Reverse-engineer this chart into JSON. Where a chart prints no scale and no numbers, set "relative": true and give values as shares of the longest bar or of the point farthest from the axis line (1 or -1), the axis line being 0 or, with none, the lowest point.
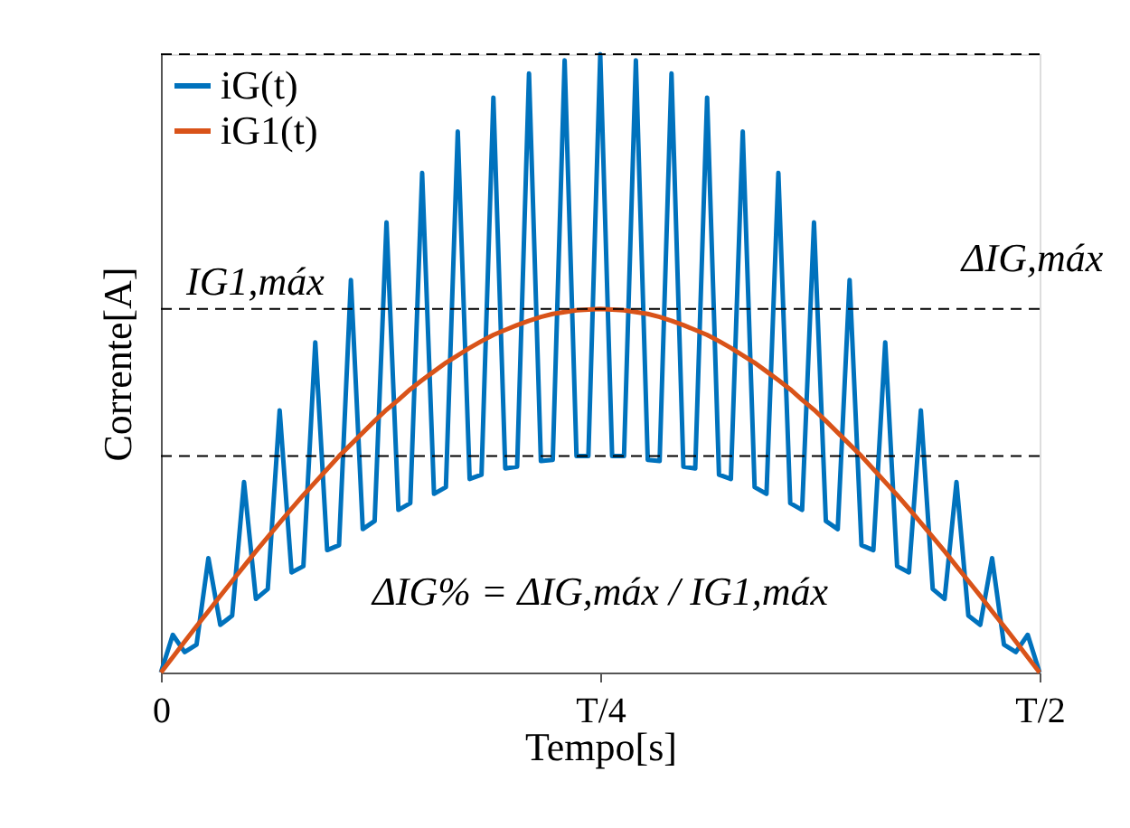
{
  "chart_data": {
    "type": "line",
    "relative": true,
    "xlabel": "Tempo[s]",
    "ylabel": "Corrente[A]",
    "categories": [
      "0",
      null,
      null,
      null,
      null,
      null,
      null,
      null,
      null,
      null,
      null,
      null,
      null,
      null,
      null,
      null,
      null,
      null,
      null,
      null,
      null,
      null,
      null,
      null,
      null,
      null,
      null,
      null,
      null,
      null,
      null,
      null,
      null,
      null,
      null,
      null,
      null,
      "T/4",
      null,
      null,
      null,
      null,
      null,
      null,
      null,
      null,
      null,
      null,
      null,
      null,
      null,
      null,
      null,
      null,
      null,
      null,
      null,
      null,
      null,
      null,
      null,
      null,
      null,
      null,
      null,
      null,
      null,
      null,
      null,
      null,
      null,
      null,
      null,
      null,
      "T/2"
    ],
    "legend": "top left",
    "line_style": "solid",
    "series": [
      {
        "name": "iG(t)",
        "color": "#0072bd",
        "values": [
          0,
          0.061,
          0.033,
          0.045,
          0.185,
          0.077,
          0.092,
          0.308,
          0.119,
          0.135,
          0.424,
          0.162,
          0.172,
          0.534,
          0.198,
          0.206,
          0.635,
          0.232,
          0.245,
          0.728,
          0.263,
          0.274,
          0.808,
          0.289,
          0.3,
          0.875,
          0.313,
          0.32,
          0.93,
          0.33,
          0.333,
          0.969,
          0.342,
          0.344,
          0.99,
          0.35,
          0.35,
          1.0,
          0.35,
          0.35,
          0.99,
          0.344,
          0.342,
          0.969,
          0.333,
          0.33,
          0.93,
          0.32,
          0.313,
          0.875,
          0.3,
          0.289,
          0.808,
          0.274,
          0.263,
          0.728,
          0.245,
          0.232,
          0.635,
          0.206,
          0.198,
          0.534,
          0.172,
          0.162,
          0.424,
          0.135,
          0.119,
          0.308,
          0.092,
          0.077,
          0.185,
          0.045,
          0.033,
          0.061,
          0
        ]
      },
      {
        "name": "iG1(t)",
        "color": "#d95319",
        "values": [
          0,
          0.025,
          0.05,
          0.075,
          0.099,
          0.124,
          0.148,
          0.172,
          0.196,
          0.219,
          0.242,
          0.265,
          0.287,
          0.308,
          0.329,
          0.35,
          0.369,
          0.388,
          0.407,
          0.425,
          0.441,
          0.458,
          0.473,
          0.487,
          0.501,
          0.513,
          0.525,
          0.536,
          0.546,
          0.554,
          0.562,
          0.569,
          0.575,
          0.58,
          0.583,
          0.586,
          0.587,
          0.588,
          0.587,
          0.586,
          0.583,
          0.58,
          0.575,
          0.569,
          0.562,
          0.554,
          0.546,
          0.536,
          0.525,
          0.513,
          0.501,
          0.487,
          0.473,
          0.458,
          0.441,
          0.425,
          0.407,
          0.388,
          0.369,
          0.35,
          0.329,
          0.308,
          0.287,
          0.265,
          0.242,
          0.219,
          0.196,
          0.172,
          0.148,
          0.124,
          0.099,
          0.075,
          0.05,
          0.025,
          0
        ]
      }
    ],
    "ref_lines": [
      {
        "axis": "y",
        "value": 0.588,
        "label": "IG1,máx",
        "line_style": "dashed",
        "color": "#000000"
      },
      {
        "axis": "y",
        "value": 1.0,
        "label": null,
        "line_style": "dashed",
        "color": "#000000"
      },
      {
        "axis": "y",
        "value": 0.35,
        "label": null,
        "line_style": "dashed",
        "color": "#000000"
      }
    ],
    "annotations": [
      "ΔIG,máx",
      "ΔIG% = ΔIG,máx / IG1,máx"
    ]
  }
}
